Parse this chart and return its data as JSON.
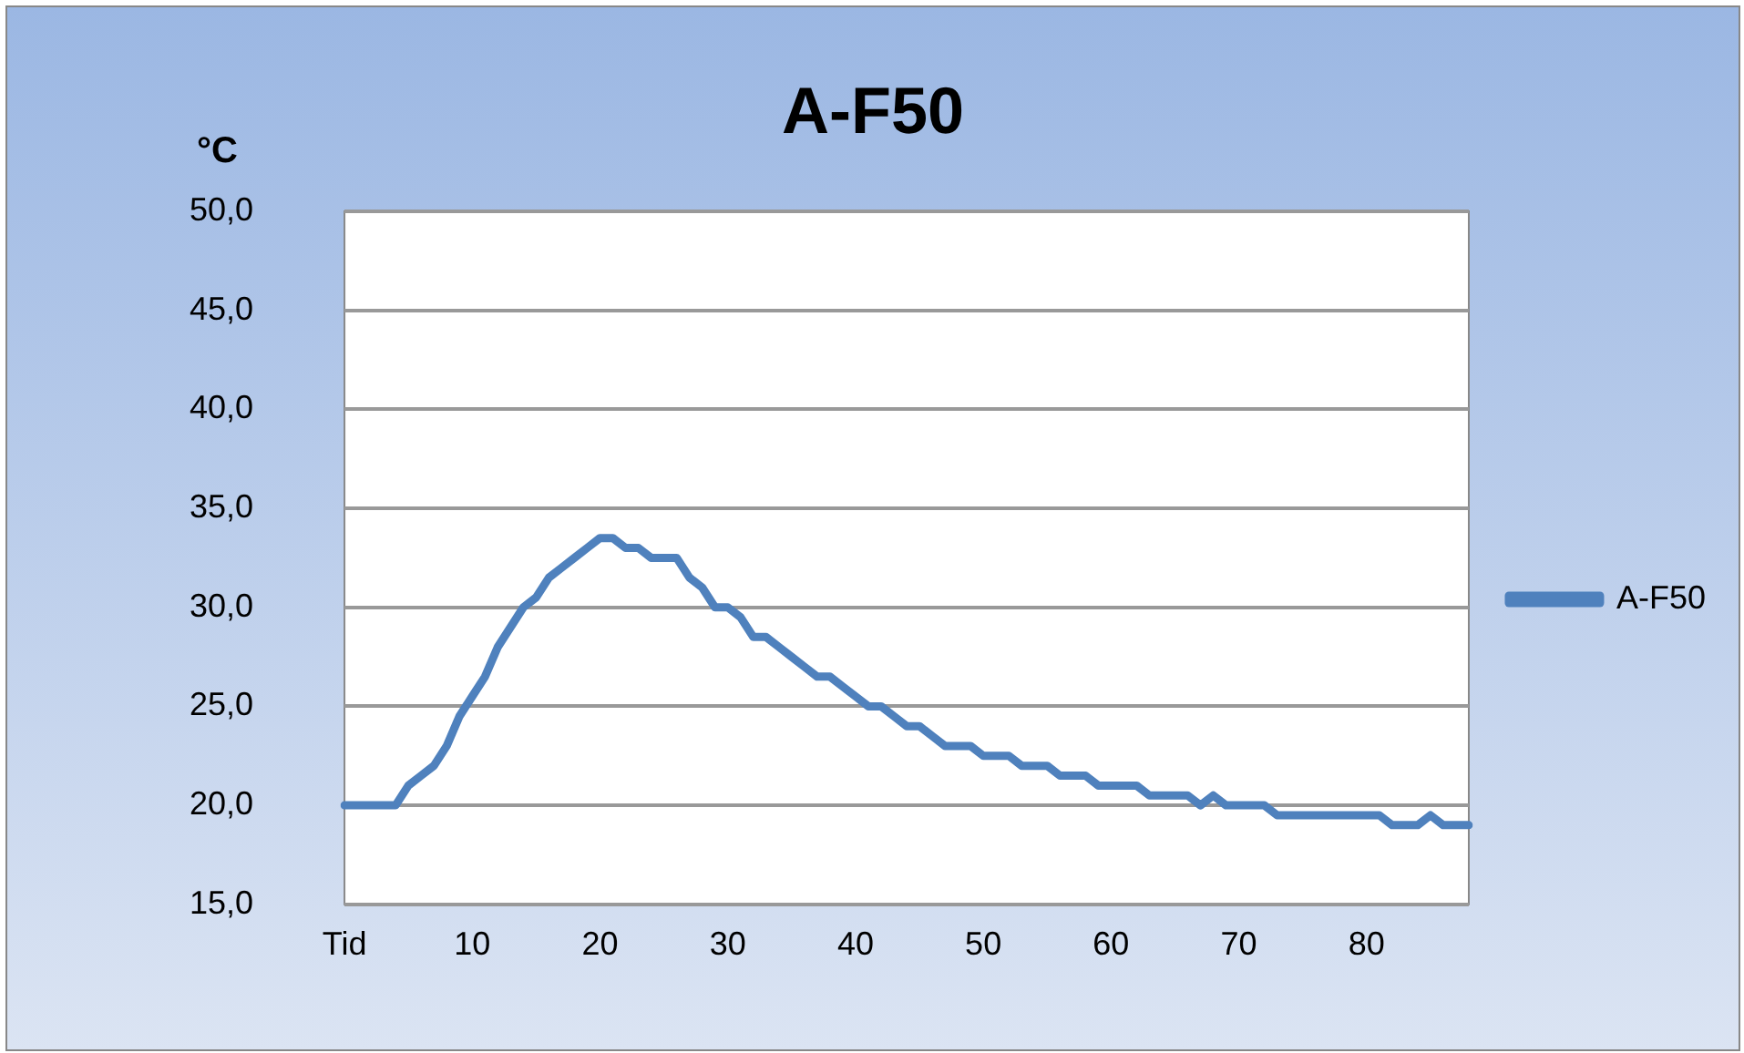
{
  "chart_data": {
    "type": "line",
    "title": "A-F50",
    "ylabel": "°C",
    "categories": [
      "Tid",
      null,
      null,
      null,
      null,
      null,
      null,
      null,
      null,
      null,
      "10",
      null,
      null,
      null,
      null,
      null,
      null,
      null,
      null,
      null,
      "20",
      null,
      null,
      null,
      null,
      null,
      null,
      null,
      null,
      null,
      "30",
      null,
      null,
      null,
      null,
      null,
      null,
      null,
      null,
      null,
      "40",
      null,
      null,
      null,
      null,
      null,
      null,
      null,
      null,
      null,
      "50",
      null,
      null,
      null,
      null,
      null,
      null,
      null,
      null,
      null,
      "60",
      null,
      null,
      null,
      null,
      null,
      null,
      null,
      null,
      null,
      "70",
      null,
      null,
      null,
      null,
      null,
      null,
      null,
      null,
      null,
      "80",
      null,
      null,
      null,
      null,
      null,
      null,
      null,
      null
    ],
    "series": [
      {
        "name": "A-F50",
        "color": "#4f81bd",
        "values": [
          20,
          20,
          20,
          20,
          20,
          21,
          21.5,
          22,
          23,
          24.5,
          25.5,
          26.5,
          28,
          29,
          30,
          30.5,
          31.5,
          32,
          32.5,
          33,
          33.5,
          33.5,
          33,
          33,
          32.5,
          32.5,
          32.5,
          31.5,
          31,
          30,
          30,
          29.5,
          28.5,
          28.5,
          28,
          27.5,
          27,
          26.5,
          26.5,
          26,
          25.5,
          25,
          25,
          24.5,
          24,
          24,
          23.5,
          23,
          23,
          23,
          22.5,
          22.5,
          22.5,
          22,
          22,
          22,
          21.5,
          21.5,
          21.5,
          21,
          21,
          21,
          21,
          20.5,
          20.5,
          20.5,
          20.5,
          20,
          20.5,
          20,
          20,
          20,
          20,
          19.5,
          19.5,
          19.5,
          19.5,
          19.5,
          19.5,
          19.5,
          19.5,
          19.5,
          19,
          19,
          19,
          19.5,
          19,
          19,
          19
        ]
      }
    ],
    "ylim": [
      15,
      50
    ],
    "yticks": [
      {
        "value": 15,
        "label": "15,0"
      },
      {
        "value": 20,
        "label": "20,0"
      },
      {
        "value": 25,
        "label": "25,0"
      },
      {
        "value": 30,
        "label": "30,0"
      },
      {
        "value": 35,
        "label": "35,0"
      },
      {
        "value": 40,
        "label": "40,0"
      },
      {
        "value": 45,
        "label": "45,0"
      },
      {
        "value": 50,
        "label": "50,0"
      }
    ],
    "grid": "y",
    "legend": "right",
    "marker": "none",
    "line_style": "solid"
  }
}
